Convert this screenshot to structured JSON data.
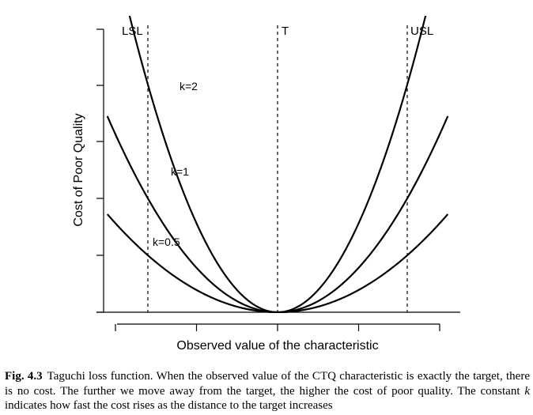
{
  "chart_data": {
    "type": "line",
    "title": "",
    "xlabel": "Observed value of the characteristic",
    "ylabel": "Cost of Poor Quality",
    "x_axis": {
      "range": [
        -1,
        1
      ],
      "tick_labels": false,
      "tick_count": 5
    },
    "y_axis": {
      "range": [
        0,
        1.05
      ],
      "tick_labels": false,
      "tick_count": 6
    },
    "grid": false,
    "legend": "none",
    "loss_function": "cost = k * (x - target)^2",
    "target": 0,
    "series": [
      {
        "name": "k=0.5",
        "k": 0.5,
        "x": [
          -1,
          -0.8,
          -0.6,
          -0.4,
          -0.2,
          0,
          0.2,
          0.4,
          0.6,
          0.8,
          1
        ],
        "values": [
          0.5,
          0.32,
          0.18,
          0.08,
          0.02,
          0,
          0.02,
          0.08,
          0.18,
          0.32,
          0.5
        ]
      },
      {
        "name": "k=1",
        "k": 1,
        "x": [
          -1,
          -0.8,
          -0.6,
          -0.4,
          -0.2,
          0,
          0.2,
          0.4,
          0.6,
          0.8,
          1
        ],
        "values": [
          1,
          0.64,
          0.36,
          0.16,
          0.04,
          0,
          0.04,
          0.16,
          0.36,
          0.64,
          1
        ]
      },
      {
        "name": "k=2",
        "k": 2,
        "x": [
          -0.7,
          -0.6,
          -0.4,
          -0.2,
          0,
          0.2,
          0.4,
          0.6,
          0.7
        ],
        "values": [
          0.98,
          0.72,
          0.32,
          0.08,
          0,
          0.08,
          0.32,
          0.72,
          0.98
        ]
      }
    ],
    "reference_lines": [
      {
        "label": "LSL",
        "x": -0.8
      },
      {
        "label": "T",
        "x": 0
      },
      {
        "label": "USL",
        "x": 0.8
      }
    ],
    "colors": {
      "curve": "#000000",
      "axis": "#000000",
      "reference": "#000000"
    }
  },
  "caption": {
    "label": "Fig. 4.3",
    "text_before_k": "Taguchi loss function. When the observed value of the CTQ characteristic is exactly the target, there is no cost. The further we move away from the target, the higher the cost of poor quality. The constant ",
    "k_symbol": "k",
    "text_after_k": " indicates how fast the cost rises as the distance to the target increases"
  }
}
